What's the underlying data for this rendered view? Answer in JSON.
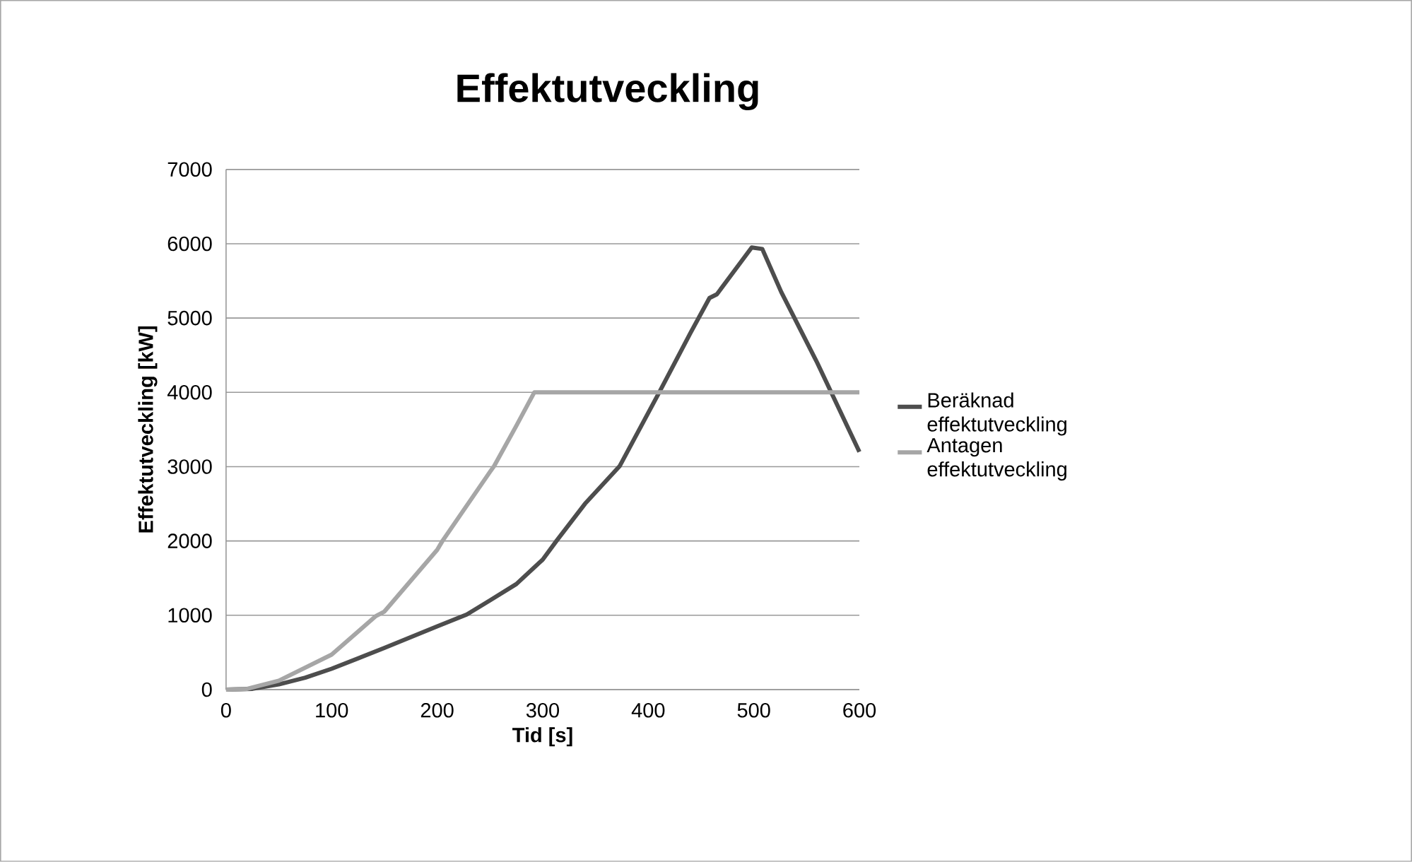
{
  "chart_data": {
    "type": "line",
    "title": "Effektutveckling",
    "xlabel": "Tid [s]",
    "ylabel": "Effektutveckling [kW]",
    "xlim": [
      0,
      600
    ],
    "xticks": [
      0,
      100,
      200,
      300,
      400,
      500,
      600
    ],
    "ylim": [
      0,
      7000
    ],
    "yticks": [
      0,
      1000,
      2000,
      3000,
      4000,
      5000,
      6000,
      7000
    ],
    "grid": "y",
    "legend": "right",
    "line_style": "solid",
    "series": [
      {
        "name": "Beräknad effektutveckling",
        "color": "#4d4d4d",
        "x": [
          0,
          25,
          50,
          75,
          100,
          150,
          200,
          228,
          250,
          275,
          300,
          313,
          340,
          373,
          410,
          440,
          458,
          465,
          498,
          508,
          526,
          560,
          600
        ],
        "values": [
          0,
          10,
          70,
          160,
          280,
          560,
          850,
          1010,
          1200,
          1420,
          1750,
          2000,
          2500,
          3010,
          3990,
          4800,
          5270,
          5320,
          5950,
          5930,
          5350,
          4400,
          3200
        ]
      },
      {
        "name": "Antagen effektutveckling",
        "color": "#a6a6a6",
        "x": [
          0,
          20,
          50,
          100,
          142,
          150,
          200,
          205,
          250,
          254,
          275,
          292,
          600
        ],
        "values": [
          0,
          10,
          120,
          470,
          990,
          1050,
          1880,
          2000,
          2930,
          3010,
          3550,
          4000,
          4000
        ]
      }
    ]
  }
}
